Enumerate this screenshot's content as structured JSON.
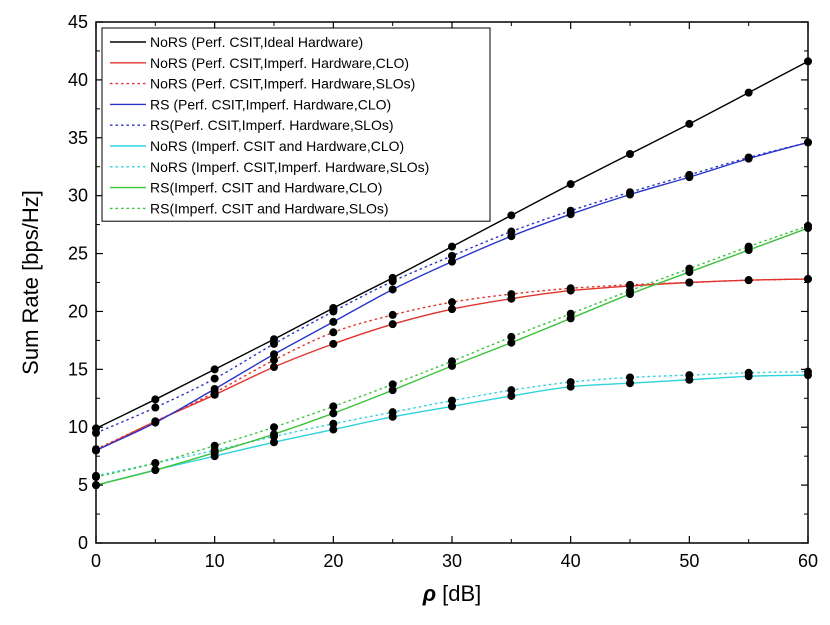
{
  "chart_data": {
    "type": "line",
    "title": "",
    "xlabel_symbol": "ρ",
    "xlabel_unit": " [dB]",
    "ylabel": "Sum Rate [bps/Hz]",
    "xlim": [
      0,
      60
    ],
    "ylim": [
      0,
      45
    ],
    "xticks": [
      0,
      10,
      20,
      30,
      40,
      50,
      60
    ],
    "yticks": [
      0,
      5,
      10,
      15,
      20,
      25,
      30,
      35,
      40,
      45
    ],
    "grid": false,
    "legend_position": "top-left",
    "x": [
      0,
      5,
      10,
      15,
      20,
      25,
      30,
      35,
      40,
      45,
      50,
      55,
      60
    ],
    "series": [
      {
        "name": "NoRS (Perf. CSIT,Ideal Hardware)",
        "color": "#000000",
        "style": "solid",
        "values": [
          9.9,
          12.4,
          15.0,
          17.6,
          20.3,
          22.9,
          25.6,
          28.3,
          31.0,
          33.6,
          36.2,
          38.9,
          41.6
        ]
      },
      {
        "name": "NoRS (Perf. CSIT,Imperf. Hardware,CLO)",
        "color": "#e0332b",
        "style": "solid",
        "values": [
          8.0,
          10.5,
          12.8,
          15.2,
          17.2,
          18.9,
          20.2,
          21.1,
          21.8,
          22.2,
          22.5,
          22.7,
          22.8
        ]
      },
      {
        "name": "NoRS (Perf. CSIT,Imperf. Hardware,SLOs)",
        "color": "#e0332b",
        "style": "dotted",
        "values": [
          8.1,
          10.5,
          13.0,
          15.8,
          18.2,
          19.7,
          20.8,
          21.5,
          22.0,
          22.3,
          22.5,
          22.7,
          22.8
        ]
      },
      {
        "name": "RS (Perf. CSIT,Imperf. Hardware,CLO)",
        "color": "#2a35c8",
        "style": "solid",
        "values": [
          8.0,
          10.4,
          13.3,
          16.3,
          19.1,
          21.9,
          24.3,
          26.5,
          28.4,
          30.1,
          31.6,
          33.2,
          34.6
        ]
      },
      {
        "name": "RS(Perf. CSIT,Imperf. Hardware,SLOs)",
        "color": "#2a35c8",
        "style": "dotted",
        "values": [
          9.5,
          11.7,
          14.2,
          17.2,
          20.0,
          22.6,
          24.8,
          26.9,
          28.7,
          30.3,
          31.8,
          33.3,
          34.6
        ]
      },
      {
        "name": "NoRS (Imperf. CSIT and Hardware,CLO)",
        "color": "#2fd3dd",
        "style": "solid",
        "values": [
          5.0,
          6.3,
          7.5,
          8.7,
          9.8,
          10.9,
          11.8,
          12.7,
          13.5,
          13.8,
          14.1,
          14.4,
          14.5
        ]
      },
      {
        "name": "NoRS (Imperf. CSIT,Imperf. Hardware,SLOs)",
        "color": "#2fd3dd",
        "style": "dotted",
        "values": [
          5.8,
          6.9,
          8.0,
          9.2,
          10.3,
          11.3,
          12.3,
          13.2,
          13.9,
          14.3,
          14.5,
          14.7,
          14.8
        ]
      },
      {
        "name": "RS(Imperf. CSIT and Hardware,CLO)",
        "color": "#3ec23e",
        "style": "solid",
        "values": [
          5.0,
          6.3,
          7.8,
          9.4,
          11.2,
          13.2,
          15.3,
          17.3,
          19.4,
          21.5,
          23.4,
          25.3,
          27.2
        ]
      },
      {
        "name": "RS(Imperf. CSIT and Hardware,SLOs)",
        "color": "#3ec23e",
        "style": "dotted",
        "values": [
          5.7,
          6.9,
          8.4,
          10.0,
          11.8,
          13.7,
          15.7,
          17.8,
          19.8,
          21.8,
          23.7,
          25.6,
          27.4
        ]
      }
    ]
  }
}
